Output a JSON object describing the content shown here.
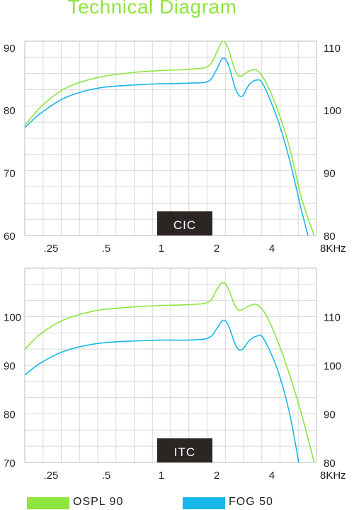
{
  "title": "Technical Diagram",
  "colors": {
    "ospl": "#8ee53f",
    "fog": "#18b8ea",
    "grid": "#d8d8d8",
    "axis": "#c9c9c9",
    "badge_bg": "#2b2523",
    "badge_fg": "#ffffff"
  },
  "legend": [
    {
      "label": "OSPL 90",
      "color": "#8ee53f"
    },
    {
      "label": "FOG 50",
      "color": "#18b8ea"
    }
  ],
  "chart_data": [
    {
      "type": "line",
      "badge": "CIC",
      "x_ticks": [
        ".25",
        ".5",
        "1",
        "2",
        "4",
        "8KHz"
      ],
      "x_tick_values": [
        0.25,
        0.5,
        1,
        2,
        4,
        8
      ],
      "xlim": [
        0.18,
        7
      ],
      "x_scale": "log",
      "y_left_ticks": [
        "90",
        "80",
        "70",
        "60"
      ],
      "y_left_tick_values": [
        90,
        80,
        70,
        60
      ],
      "ylim": [
        60,
        91
      ],
      "y_right_ticks": [
        "110",
        "100",
        "90",
        "80"
      ],
      "grid": true,
      "series": [
        {
          "name": "OSPL 90",
          "color": "#8ee53f",
          "points": [
            [
              0.18,
              77.5
            ],
            [
              0.22,
              80.5
            ],
            [
              0.3,
              83.5
            ],
            [
              0.45,
              85.2
            ],
            [
              0.7,
              86
            ],
            [
              1,
              86.3
            ],
            [
              1.4,
              86.5
            ],
            [
              1.8,
              87
            ],
            [
              2.0,
              89.2
            ],
            [
              2.15,
              91
            ],
            [
              2.3,
              90
            ],
            [
              2.6,
              85.6
            ],
            [
              3.0,
              86.2
            ],
            [
              3.3,
              86.4
            ],
            [
              3.7,
              84.5
            ],
            [
              4.3,
              80
            ],
            [
              5.0,
              74
            ],
            [
              5.8,
              66
            ],
            [
              6.8,
              60
            ]
          ]
        },
        {
          "name": "FOG 50",
          "color": "#18b8ea",
          "points": [
            [
              0.18,
              77.2
            ],
            [
              0.22,
              79.5
            ],
            [
              0.3,
              82
            ],
            [
              0.45,
              83.5
            ],
            [
              0.7,
              84
            ],
            [
              1,
              84.2
            ],
            [
              1.4,
              84.3
            ],
            [
              1.8,
              84.6
            ],
            [
              2.0,
              86.5
            ],
            [
              2.15,
              88.2
            ],
            [
              2.3,
              87.5
            ],
            [
              2.55,
              83.2
            ],
            [
              2.75,
              82.2
            ],
            [
              3.0,
              84
            ],
            [
              3.3,
              84.8
            ],
            [
              3.6,
              84
            ],
            [
              4.3,
              78.5
            ],
            [
              5.0,
              72
            ],
            [
              5.8,
              64
            ],
            [
              6.3,
              60
            ]
          ]
        }
      ]
    },
    {
      "type": "line",
      "badge": "ITC",
      "x_ticks": [
        ".25",
        ".5",
        "1",
        "2",
        "4",
        "8KHz"
      ],
      "x_tick_values": [
        0.25,
        0.5,
        1,
        2,
        4,
        8
      ],
      "xlim": [
        0.18,
        7
      ],
      "x_scale": "log",
      "y_left_ticks": [
        "100",
        "90",
        "80",
        "70"
      ],
      "y_left_tick_values": [
        100,
        90,
        80,
        70
      ],
      "ylim": [
        70,
        110
      ],
      "y_right_ticks": [
        "110",
        "100",
        "90",
        "80"
      ],
      "grid": true,
      "series": [
        {
          "name": "OSPL 90",
          "color": "#8ee53f",
          "points": [
            [
              0.18,
              93.3
            ],
            [
              0.22,
              96.5
            ],
            [
              0.3,
              99.5
            ],
            [
              0.45,
              101.3
            ],
            [
              0.7,
              102
            ],
            [
              1,
              102.3
            ],
            [
              1.4,
              102.5
            ],
            [
              1.8,
              103
            ],
            [
              2.0,
              105.5
            ],
            [
              2.15,
              107
            ],
            [
              2.3,
              106
            ],
            [
              2.6,
              101.5
            ],
            [
              3.0,
              102.2
            ],
            [
              3.3,
              102.5
            ],
            [
              3.7,
              100.5
            ],
            [
              4.3,
              95
            ],
            [
              5.0,
              88
            ],
            [
              5.8,
              80
            ],
            [
              6.8,
              70
            ]
          ]
        },
        {
          "name": "FOG 50",
          "color": "#18b8ea",
          "points": [
            [
              0.18,
              88
            ],
            [
              0.22,
              90.5
            ],
            [
              0.3,
              93
            ],
            [
              0.45,
              94.5
            ],
            [
              0.7,
              95
            ],
            [
              1,
              95.2
            ],
            [
              1.4,
              95.2
            ],
            [
              1.8,
              95.6
            ],
            [
              2.0,
              97.5
            ],
            [
              2.15,
              99.2
            ],
            [
              2.3,
              98.5
            ],
            [
              2.55,
              94
            ],
            [
              2.75,
              93.2
            ],
            [
              3.0,
              95
            ],
            [
              3.3,
              96
            ],
            [
              3.6,
              95.5
            ],
            [
              4.3,
              89
            ],
            [
              5.0,
              80
            ],
            [
              5.6,
              70
            ]
          ]
        }
      ]
    }
  ]
}
